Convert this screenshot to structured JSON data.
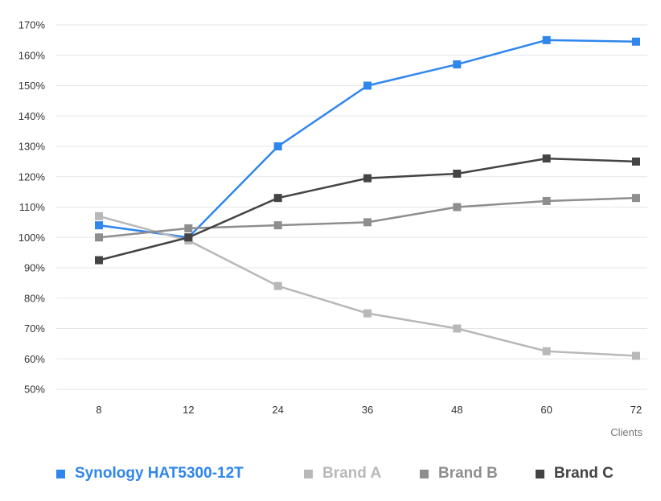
{
  "chart_data": {
    "type": "line",
    "categories": [
      "8",
      "12",
      "24",
      "36",
      "48",
      "60",
      "72"
    ],
    "xlabel": "Clients",
    "ylabel": "",
    "ylim": [
      50,
      170
    ],
    "yticks": [
      "170%",
      "160%",
      "150%",
      "140%",
      "130%",
      "120%",
      "110%",
      "100%",
      "90%",
      "80%",
      "70%",
      "60%",
      "50%"
    ],
    "grid": true,
    "legend_position": "bottom",
    "series": [
      {
        "name": "Synology HAT5300-12T",
        "color": "#2f86ec",
        "values": [
          104,
          100,
          130,
          150,
          157,
          165,
          164.5
        ]
      },
      {
        "name": "Brand A",
        "color": "#b8b8b8",
        "values": [
          107,
          99,
          84,
          75,
          70,
          62.5,
          61
        ]
      },
      {
        "name": "Brand B",
        "color": "#8e8e8e",
        "values": [
          100,
          103,
          104,
          105,
          110,
          112,
          113
        ]
      },
      {
        "name": "Brand C",
        "color": "#444444",
        "values": [
          92.5,
          100,
          113,
          119.5,
          121,
          126,
          125
        ]
      }
    ]
  }
}
